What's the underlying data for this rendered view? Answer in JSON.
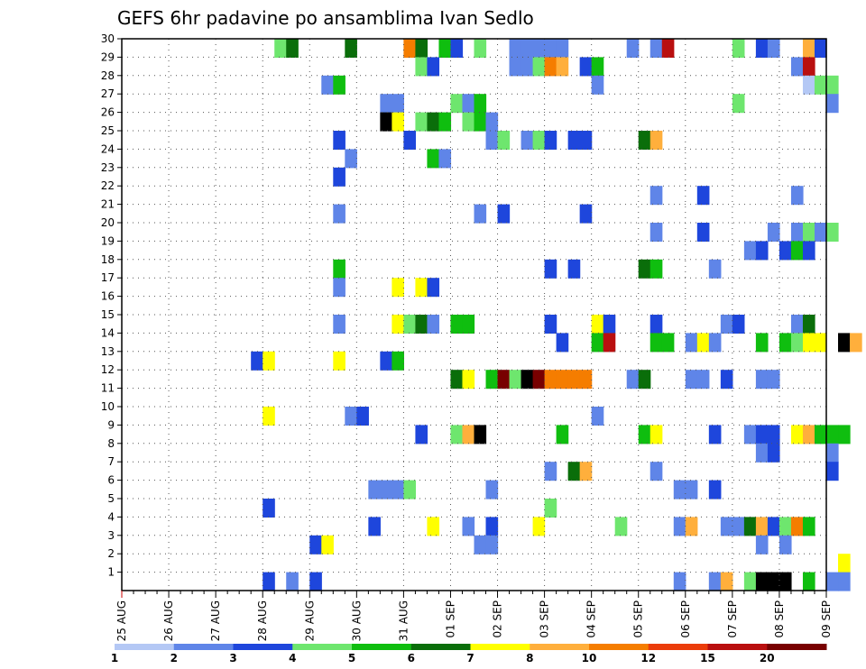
{
  "chart_data": {
    "type": "heatmap",
    "title": "GEFS 6hr padavine po ansamblima Ivan Sedlo",
    "xlabel": "",
    "ylabel": "",
    "x_tick_labels": [
      "25 AUG",
      "26 AUG",
      "27 AUG",
      "28 AUG",
      "29 AUG",
      "30 AUG",
      "31 AUG",
      "01 SEP",
      "02 SEP",
      "03 SEP",
      "04 SEP",
      "05 SEP",
      "06 SEP",
      "07 SEP",
      "08 SEP",
      "09 SEP"
    ],
    "y_tick_labels": [
      "1",
      "2",
      "3",
      "4",
      "5",
      "6",
      "7",
      "8",
      "9",
      "10",
      "11",
      "12",
      "13",
      "14",
      "15",
      "16",
      "17",
      "18",
      "19",
      "20",
      "21",
      "22",
      "23",
      "24",
      "25",
      "26",
      "27",
      "28",
      "29",
      "30"
    ],
    "x_range_days": [
      0,
      15
    ],
    "steps_per_day": 4,
    "member_range": [
      1,
      30
    ],
    "grid": true,
    "legend": {
      "placement": "bottom",
      "labels": [
        "1",
        "2",
        "3",
        "4",
        "5",
        "6",
        "7",
        "8",
        "10",
        "12",
        "15",
        "20"
      ],
      "colors": [
        "#b4c8f5",
        "#5f85e8",
        "#1e46dc",
        "#6ee66e",
        "#0fbe0f",
        "#0a6e0a",
        "#ffff00",
        "#ffaf3c",
        "#f57d00",
        "#eb3c0a",
        "#b90f0f",
        "#780000"
      ]
    },
    "series": [
      {
        "member": 30,
        "cells": [
          [
            13,
            3
          ],
          [
            14,
            5
          ],
          [
            19,
            5
          ],
          [
            24,
            8
          ],
          [
            25,
            5
          ],
          [
            27,
            4
          ],
          [
            28,
            2
          ],
          [
            30,
            3
          ],
          [
            33,
            1
          ],
          [
            34,
            1
          ],
          [
            35,
            1
          ],
          [
            36,
            1
          ],
          [
            37,
            1
          ],
          [
            43,
            1
          ],
          [
            45,
            1
          ],
          [
            46,
            10
          ],
          [
            52,
            3
          ],
          [
            54,
            2
          ],
          [
            55,
            1
          ],
          [
            58,
            7
          ],
          [
            59,
            2
          ]
        ]
      },
      {
        "member": 29,
        "cells": [
          [
            25,
            3
          ],
          [
            26,
            2
          ],
          [
            33,
            1
          ],
          [
            34,
            1
          ],
          [
            35,
            3
          ],
          [
            36,
            8
          ],
          [
            37,
            7
          ],
          [
            39,
            2
          ],
          [
            40,
            4
          ],
          [
            57,
            1
          ],
          [
            58,
            10
          ]
        ]
      },
      {
        "member": 28,
        "cells": [
          [
            17,
            1
          ],
          [
            18,
            4
          ],
          [
            40,
            1
          ],
          [
            58,
            0
          ],
          [
            59,
            3
          ],
          [
            60,
            3
          ]
        ]
      },
      {
        "member": 27,
        "cells": [
          [
            22,
            1
          ],
          [
            23,
            1
          ],
          [
            28,
            3
          ],
          [
            29,
            1
          ],
          [
            30,
            4
          ],
          [
            52,
            3
          ],
          [
            60,
            1
          ]
        ]
      },
      {
        "member": 26,
        "cells": [
          [
            22,
            15
          ],
          [
            23,
            6
          ],
          [
            25,
            3
          ],
          [
            26,
            5
          ],
          [
            27,
            4
          ],
          [
            29,
            3
          ],
          [
            30,
            4
          ],
          [
            31,
            1
          ]
        ]
      },
      {
        "member": 25,
        "cells": [
          [
            18,
            2
          ],
          [
            24,
            2
          ],
          [
            31,
            1
          ],
          [
            32,
            3
          ],
          [
            34,
            1
          ],
          [
            35,
            3
          ],
          [
            36,
            2
          ],
          [
            38,
            2
          ],
          [
            39,
            2
          ],
          [
            44,
            5
          ],
          [
            45,
            7
          ]
        ]
      },
      {
        "member": 24,
        "cells": [
          [
            19,
            1
          ],
          [
            26,
            4
          ],
          [
            27,
            1
          ]
        ]
      },
      {
        "member": 23,
        "cells": [
          [
            18,
            2
          ]
        ]
      },
      {
        "member": 22,
        "cells": [
          [
            45,
            1
          ],
          [
            49,
            2
          ],
          [
            57,
            1
          ]
        ]
      },
      {
        "member": 21,
        "cells": [
          [
            18,
            1
          ],
          [
            30,
            1
          ],
          [
            32,
            2
          ],
          [
            39,
            2
          ]
        ]
      },
      {
        "member": 20,
        "cells": [
          [
            45,
            1
          ],
          [
            49,
            2
          ],
          [
            55,
            1
          ],
          [
            57,
            1
          ],
          [
            58,
            3
          ],
          [
            59,
            1
          ],
          [
            60,
            3
          ]
        ]
      },
      {
        "member": 19,
        "cells": [
          [
            53,
            1
          ],
          [
            54,
            2
          ],
          [
            56,
            2
          ],
          [
            57,
            4
          ],
          [
            58,
            2
          ]
        ]
      },
      {
        "member": 18,
        "cells": [
          [
            18,
            4
          ],
          [
            36,
            2
          ],
          [
            38,
            2
          ],
          [
            44,
            5
          ],
          [
            45,
            4
          ],
          [
            50,
            1
          ]
        ]
      },
      {
        "member": 17,
        "cells": [
          [
            18,
            1
          ],
          [
            23,
            6
          ],
          [
            25,
            6
          ],
          [
            26,
            2
          ]
        ]
      },
      {
        "member": 16,
        "cells": []
      },
      {
        "member": 15,
        "cells": [
          [
            18,
            1
          ],
          [
            23,
            6
          ],
          [
            24,
            3
          ],
          [
            25,
            5
          ],
          [
            26,
            1
          ],
          [
            28,
            4
          ],
          [
            29,
            4
          ],
          [
            36,
            2
          ],
          [
            40,
            6
          ],
          [
            41,
            2
          ],
          [
            45,
            2
          ],
          [
            51,
            1
          ],
          [
            52,
            2
          ],
          [
            57,
            1
          ],
          [
            58,
            5
          ]
        ]
      },
      {
        "member": 14,
        "cells": [
          [
            37,
            2
          ],
          [
            40,
            4
          ],
          [
            41,
            10
          ],
          [
            45,
            4
          ],
          [
            46,
            4
          ],
          [
            48,
            1
          ],
          [
            49,
            6
          ],
          [
            50,
            1
          ],
          [
            54,
            4
          ],
          [
            56,
            4
          ],
          [
            57,
            3
          ],
          [
            58,
            6
          ],
          [
            59,
            6
          ],
          [
            61,
            12
          ],
          [
            62,
            7
          ]
        ]
      },
      {
        "member": 13,
        "cells": [
          [
            11,
            2
          ],
          [
            12,
            6
          ],
          [
            18,
            6
          ],
          [
            22,
            2
          ],
          [
            23,
            4
          ]
        ]
      },
      {
        "member": 12,
        "cells": [
          [
            28,
            5
          ],
          [
            29,
            6
          ],
          [
            31,
            4
          ],
          [
            32,
            11
          ],
          [
            33,
            3
          ],
          [
            34,
            12
          ],
          [
            35,
            11
          ],
          [
            36,
            8
          ],
          [
            37,
            8
          ],
          [
            38,
            8
          ],
          [
            39,
            8
          ],
          [
            43,
            1
          ],
          [
            44,
            5
          ],
          [
            48,
            1
          ],
          [
            49,
            1
          ],
          [
            51,
            2
          ],
          [
            54,
            1
          ],
          [
            55,
            1
          ]
        ]
      },
      {
        "member": 11,
        "cells": []
      },
      {
        "member": 10,
        "cells": [
          [
            12,
            6
          ],
          [
            19,
            1
          ],
          [
            20,
            2
          ],
          [
            40,
            1
          ]
        ]
      },
      {
        "member": 9,
        "cells": [
          [
            25,
            2
          ],
          [
            28,
            3
          ],
          [
            29,
            7
          ],
          [
            30,
            12
          ],
          [
            37,
            4
          ],
          [
            44,
            4
          ],
          [
            45,
            6
          ],
          [
            50,
            2
          ],
          [
            53,
            1
          ],
          [
            54,
            2
          ],
          [
            55,
            2
          ],
          [
            57,
            6
          ],
          [
            58,
            7
          ],
          [
            59,
            4
          ],
          [
            60,
            4
          ],
          [
            61,
            4
          ]
        ]
      },
      {
        "member": 8,
        "cells": [
          [
            54,
            1
          ],
          [
            55,
            2
          ],
          [
            60,
            1
          ]
        ]
      },
      {
        "member": 7,
        "cells": [
          [
            36,
            1
          ],
          [
            38,
            5
          ],
          [
            39,
            7
          ],
          [
            45,
            1
          ],
          [
            60,
            2
          ]
        ]
      },
      {
        "member": 6,
        "cells": [
          [
            21,
            1
          ],
          [
            22,
            1
          ],
          [
            23,
            1
          ],
          [
            24,
            3
          ],
          [
            31,
            1
          ],
          [
            47,
            1
          ],
          [
            48,
            1
          ],
          [
            50,
            2
          ]
        ]
      },
      {
        "member": 5,
        "cells": [
          [
            12,
            2
          ],
          [
            36,
            3
          ]
        ]
      },
      {
        "member": 4,
        "cells": [
          [
            21,
            2
          ],
          [
            26,
            6
          ],
          [
            29,
            1
          ],
          [
            31,
            2
          ],
          [
            35,
            6
          ],
          [
            42,
            3
          ],
          [
            47,
            1
          ],
          [
            48,
            7
          ],
          [
            51,
            1
          ],
          [
            52,
            1
          ],
          [
            53,
            5
          ],
          [
            54,
            7
          ],
          [
            55,
            2
          ],
          [
            56,
            3
          ],
          [
            57,
            8
          ],
          [
            58,
            4
          ]
        ]
      },
      {
        "member": 3,
        "cells": [
          [
            16,
            2
          ],
          [
            17,
            6
          ],
          [
            30,
            1
          ],
          [
            31,
            1
          ],
          [
            54,
            1
          ],
          [
            56,
            1
          ]
        ]
      },
      {
        "member": 2,
        "cells": [
          [
            61,
            6
          ]
        ]
      },
      {
        "member": 1,
        "cells": [
          [
            12,
            2
          ],
          [
            14,
            1
          ],
          [
            16,
            2
          ],
          [
            47,
            1
          ],
          [
            50,
            1
          ],
          [
            51,
            7
          ],
          [
            53,
            3
          ],
          [
            54,
            15
          ],
          [
            55,
            12
          ],
          [
            56,
            12
          ],
          [
            58,
            4
          ],
          [
            60,
            1
          ],
          [
            61,
            1
          ]
        ]
      }
    ]
  }
}
